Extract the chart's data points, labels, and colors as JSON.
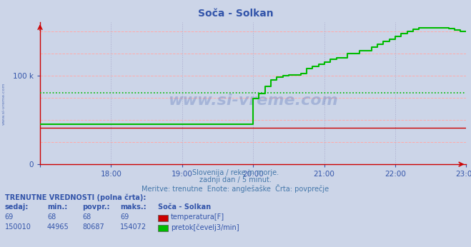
{
  "title": "Soča - Solkan",
  "bg_color": "#ccd5e8",
  "plot_bg_color": "#ccd5e8",
  "temp_color": "#cc0000",
  "flow_color": "#00bb00",
  "avg_line_color": "#00bb00",
  "x_start": 17.0,
  "x_end": 23.0,
  "x_ticks": [
    17.0,
    18.0,
    19.0,
    20.0,
    21.0,
    22.0,
    23.0
  ],
  "x_tick_labels": [
    "",
    "18:00",
    "19:00",
    "20:00",
    "21:00",
    "22:00",
    "23:00"
  ],
  "y_min": 0,
  "y_max": 160000,
  "avg_flow": 80687,
  "subtitle1": "Slovenija / reke in morje.",
  "subtitle2": "zadnji dan / 5 minut.",
  "subtitle3": "Meritve: trenutne  Enote: anglešaške  Črta: povprečje",
  "label_head": "TRENUTNE VREDNOSTI (polna črta):",
  "col_sedaj": "sedaj:",
  "col_min": "min.:",
  "col_povpr": "povpr.:",
  "col_maks": "maks.:",
  "station_label": "Soča - Solkan",
  "temp_label": "temperatura[F]",
  "flow_label": "pretok[čevelj3/min]",
  "watermark": "www.si-vreme.com",
  "watermark_color": "#3355aa",
  "left_text": "www.si-vreme.com",
  "temp_value": 69,
  "temp_min": 68,
  "temp_avg": 68,
  "temp_max": 69,
  "flow_sedaj": 150010,
  "flow_min": 44965,
  "flow_avg": 80687,
  "flow_max": 154072,
  "flow_data_x": [
    17.0,
    17.5,
    18.0,
    18.5,
    19.0,
    19.5,
    19.75,
    19.85,
    19.9,
    19.95,
    20.0,
    20.08,
    20.17,
    20.25,
    20.33,
    20.42,
    20.5,
    20.67,
    20.75,
    20.83,
    20.92,
    21.0,
    21.08,
    21.17,
    21.33,
    21.5,
    21.67,
    21.75,
    21.83,
    21.92,
    22.0,
    22.08,
    22.17,
    22.25,
    22.33,
    22.42,
    22.5,
    22.58,
    22.67,
    22.75,
    22.83,
    22.92,
    23.0
  ],
  "flow_data_y": [
    44965,
    44965,
    45200,
    45200,
    45200,
    45200,
    45200,
    45200,
    45200,
    45200,
    74000,
    80000,
    88000,
    95000,
    98000,
    100000,
    100500,
    102000,
    108000,
    110000,
    113000,
    115000,
    118000,
    120000,
    125000,
    128000,
    132000,
    135000,
    138000,
    141000,
    144000,
    147000,
    150000,
    152000,
    154072,
    154072,
    154072,
    154072,
    154072,
    153000,
    151000,
    150010,
    150010
  ],
  "temp_data_x": [
    17.0,
    23.0
  ],
  "temp_data_y": [
    69,
    69
  ]
}
